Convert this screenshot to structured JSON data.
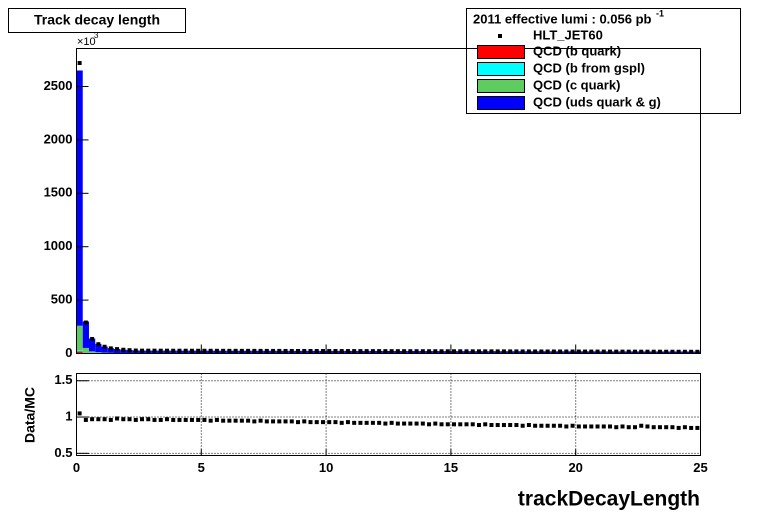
{
  "chart_data": {
    "type": "histogram",
    "title": "Track decay length",
    "xlabel": "trackDecayLength",
    "y_multiplier": "×10",
    "y_multiplier_exp": "3",
    "legend_title": "2011 effective lumi : 0.056  pb",
    "legend_title_sup": "-1",
    "xlim": [
      0,
      25
    ],
    "xticks": [
      0,
      5,
      10,
      15,
      20,
      25
    ],
    "ylim": [
      0,
      2856
    ],
    "yticks": [
      0,
      500,
      1000,
      1500,
      2000,
      2500
    ],
    "bins": [
      0,
      0.25,
      0.5,
      0.75,
      1,
      1.25,
      1.5,
      1.75,
      2,
      2.25,
      2.5,
      2.75,
      3,
      3.25,
      3.5,
      3.75,
      4,
      4.25,
      4.5,
      4.75,
      5,
      5.25,
      5.5,
      5.75,
      6,
      6.25,
      6.5,
      6.75,
      7,
      7.25,
      7.5,
      7.75,
      8,
      8.25,
      8.5,
      8.75,
      9,
      9.25,
      9.5,
      9.75,
      10,
      10.25,
      10.5,
      10.75,
      11,
      11.25,
      11.5,
      11.75,
      12,
      12.25,
      12.5,
      12.75,
      13,
      13.25,
      13.5,
      13.75,
      14,
      14.25,
      14.5,
      14.75,
      15,
      15.25,
      15.5,
      15.75,
      16,
      16.25,
      16.5,
      16.75,
      17,
      17.25,
      17.5,
      17.75,
      18,
      18.25,
      18.5,
      18.75,
      19,
      19.25,
      19.5,
      19.75,
      20,
      20.25,
      20.5,
      20.75,
      21,
      21.25,
      21.5,
      21.75,
      22,
      22.25,
      22.5,
      22.75,
      23,
      23.25,
      23.5,
      23.75,
      24,
      24.25,
      24.5,
      24.75,
      25
    ],
    "data": {
      "name": "HLT_JET60",
      "color": "#000000",
      "values": [
        2720,
        290,
        136,
        87,
        63,
        48,
        41,
        35,
        31,
        28,
        26.7,
        26.6,
        26.5,
        26.3,
        26.2,
        26.1,
        26.0,
        25.9,
        25.7,
        25.6,
        25.5,
        25.4,
        25.3,
        25.1,
        25.0,
        24.9,
        24.8,
        24.7,
        24.5,
        24.4,
        24.3,
        24.2,
        24.1,
        23.9,
        23.8,
        23.7,
        23.6,
        23.5,
        23.3,
        23.2,
        23.1,
        23.0,
        22.9,
        22.7,
        22.6,
        22.5,
        22.4,
        22.3,
        22.1,
        22.0,
        21.9,
        21.8,
        21.7,
        21.5,
        21.4,
        21.3,
        21.2,
        21.1,
        20.9,
        20.8,
        20.7,
        20.6,
        20.5,
        20.3,
        20.2,
        20.1,
        20.0,
        19.9,
        19.7,
        19.6,
        19.5,
        19.4,
        19.3,
        19.1,
        19.0,
        18.9,
        18.8,
        18.7,
        18.5,
        18.4,
        18.3,
        18.2,
        18.1,
        17.9,
        17.8,
        17.7,
        17.6,
        17.5,
        17.3,
        17.2,
        17.1,
        17.0,
        16.9,
        16.7,
        16.6,
        16.5,
        16.4,
        16.3,
        16.1,
        16.0
      ]
    },
    "series": [
      {
        "name": "QCD (b quark)",
        "color": "#ff0000",
        "values": [
          20,
          8,
          4,
          3,
          2,
          1.5,
          1.2,
          1,
          1,
          1,
          1,
          1,
          1,
          1,
          1,
          1,
          1,
          1,
          1,
          1,
          1,
          1,
          1,
          1,
          1,
          1,
          1,
          1,
          1,
          1,
          1,
          1,
          1,
          1,
          1,
          1,
          1,
          1,
          1,
          1,
          1,
          1,
          1,
          1,
          1,
          1,
          1,
          1,
          1,
          1,
          1,
          1,
          1,
          1,
          1,
          1,
          1,
          1,
          1,
          1,
          1,
          1,
          1,
          1,
          1,
          1,
          1,
          1,
          1,
          1,
          1,
          1,
          1,
          1,
          1,
          1,
          1,
          1,
          1,
          1,
          1,
          1,
          1,
          1,
          1,
          1,
          1,
          1,
          1,
          1,
          1,
          1,
          1,
          1,
          1,
          1,
          1,
          1,
          1,
          1
        ]
      },
      {
        "name": "QCD (b from gspl)",
        "color": "#00ffff",
        "values": [
          10,
          4,
          2,
          1.5,
          1,
          0.8,
          0.6,
          0.5,
          0.5,
          0.5,
          0.5,
          0.5,
          0.5,
          0.5,
          0.5,
          0.5,
          0.5,
          0.5,
          0.5,
          0.5,
          0.5,
          0.5,
          0.5,
          0.5,
          0.5,
          0.5,
          0.5,
          0.5,
          0.5,
          0.5,
          0.5,
          0.5,
          0.5,
          0.5,
          0.5,
          0.5,
          0.5,
          0.5,
          0.5,
          0.5,
          0.5,
          0.5,
          0.5,
          0.5,
          0.5,
          0.5,
          0.5,
          0.5,
          0.5,
          0.5,
          0.5,
          0.5,
          0.5,
          0.5,
          0.5,
          0.5,
          0.5,
          0.5,
          0.5,
          0.5,
          0.5,
          0.5,
          0.5,
          0.5,
          0.5,
          0.5,
          0.5,
          0.5,
          0.5,
          0.5,
          0.5,
          0.5,
          0.5,
          0.5,
          0.5,
          0.5,
          0.5,
          0.5,
          0.5,
          0.5,
          0.5,
          0.5,
          0.5,
          0.5,
          0.5,
          0.5,
          0.5,
          0.5,
          0.5,
          0.5,
          0.5,
          0.5,
          0.5,
          0.5,
          0.5,
          0.5,
          0.5,
          0.5,
          0.5,
          0.5
        ]
      },
      {
        "name": "QCD (c quark)",
        "color": "#5fcc5f",
        "values": [
          230,
          40,
          14,
          8,
          5,
          4,
          3,
          2.5,
          2.2,
          2,
          2,
          2,
          2,
          2,
          2,
          2,
          2,
          2,
          2,
          2,
          2,
          2,
          2,
          2,
          2,
          2,
          2,
          2,
          2,
          2,
          2,
          2,
          2,
          2,
          2,
          2,
          2,
          2,
          2,
          2,
          2,
          2,
          2,
          2,
          2,
          2,
          2,
          2,
          2,
          2,
          2,
          2,
          2,
          2,
          2,
          2,
          2,
          2,
          2,
          2,
          2,
          2,
          2,
          2,
          2,
          2,
          2,
          2,
          2,
          2,
          2,
          2,
          2,
          2,
          2,
          2,
          2,
          2,
          2,
          2,
          2,
          2,
          2,
          2,
          2,
          2,
          2,
          2,
          2,
          2,
          2,
          2,
          2,
          2,
          2,
          2,
          2,
          2,
          2,
          2
        ]
      },
      {
        "name": "QCD (uds quark & g)",
        "color": "#0000ff",
        "values": [
          2390,
          248,
          120,
          77.5,
          57,
          43.7,
          37.2,
          32,
          28.3,
          25.5,
          24,
          23.9,
          23.8,
          23.7,
          23.6,
          23.5,
          23.4,
          23.3,
          23.2,
          23.1,
          23,
          22.9,
          22.8,
          22.7,
          22.6,
          22.5,
          22.4,
          22.3,
          22.2,
          22.1,
          22,
          21.9,
          21.8,
          21.7,
          21.6,
          21.5,
          21.4,
          21.3,
          21.2,
          21.1,
          21,
          20.9,
          20.8,
          20.7,
          20.6,
          20.5,
          20.4,
          20.3,
          20.2,
          20.1,
          20,
          19.9,
          19.8,
          19.7,
          19.6,
          19.5,
          19.4,
          19.3,
          19.2,
          19.1,
          19,
          18.9,
          18.8,
          18.7,
          18.6,
          18.5,
          18.4,
          18.3,
          18.2,
          18.1,
          18,
          17.9,
          17.8,
          17.7,
          17.6,
          17.5,
          17.4,
          17.3,
          17.2,
          17.1,
          17,
          16.9,
          16.8,
          16.7,
          16.6,
          16.5,
          16.4,
          16.3,
          16.2,
          16.1,
          16,
          15.9,
          15.8,
          15.7,
          15.6,
          15.5,
          15.4,
          15.3,
          15.2,
          15.1
        ]
      }
    ],
    "ratio": {
      "ylabel": "Data/MC",
      "ylim": [
        0.47,
        1.6
      ],
      "yticks": [
        0.5,
        1,
        1.5
      ],
      "grid": true,
      "color": "#000000",
      "values": [
        1.05,
        0.96,
        0.97,
        0.97,
        0.97,
        0.96,
        0.98,
        0.97,
        0.97,
        0.96,
        0.97,
        0.97,
        0.96,
        0.96,
        0.97,
        0.96,
        0.96,
        0.96,
        0.96,
        0.96,
        0.96,
        0.95,
        0.96,
        0.95,
        0.95,
        0.95,
        0.95,
        0.95,
        0.94,
        0.95,
        0.94,
        0.94,
        0.94,
        0.94,
        0.94,
        0.93,
        0.94,
        0.93,
        0.93,
        0.93,
        0.93,
        0.93,
        0.92,
        0.93,
        0.92,
        0.92,
        0.92,
        0.92,
        0.92,
        0.91,
        0.92,
        0.91,
        0.91,
        0.91,
        0.91,
        0.91,
        0.9,
        0.91,
        0.9,
        0.9,
        0.9,
        0.9,
        0.9,
        0.9,
        0.89,
        0.9,
        0.89,
        0.89,
        0.89,
        0.89,
        0.89,
        0.88,
        0.89,
        0.88,
        0.88,
        0.88,
        0.88,
        0.88,
        0.87,
        0.88,
        0.87,
        0.87,
        0.87,
        0.87,
        0.87,
        0.87,
        0.86,
        0.87,
        0.86,
        0.86,
        0.88,
        0.87,
        0.86,
        0.86,
        0.86,
        0.86,
        0.85,
        0.86,
        0.85,
        0.85
      ]
    }
  }
}
